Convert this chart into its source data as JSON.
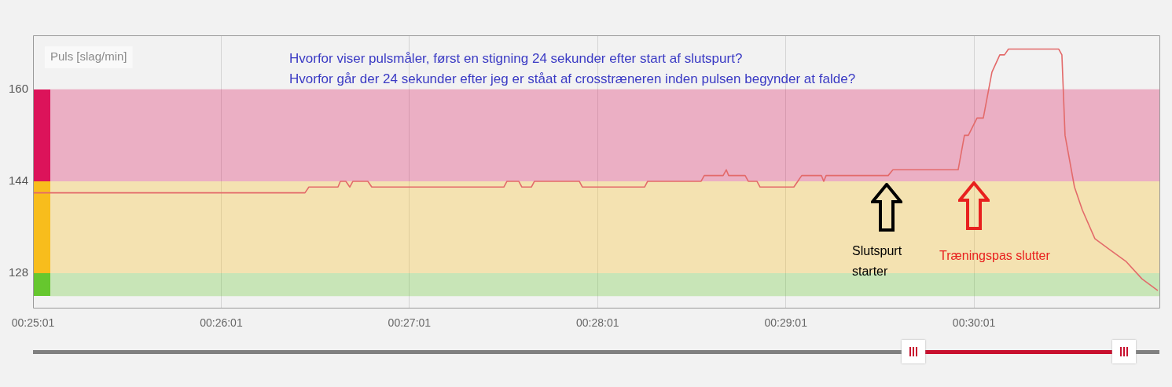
{
  "chart_data": {
    "type": "line",
    "ylabel": "Puls [slag/min]",
    "color": "#e36a6a",
    "marker": "none",
    "line_style": "solid",
    "grid": "x",
    "annotations": [
      "Hvorfor viser pulsmåler, først en stigning 24 sekunder efter start af slutspurt?",
      "Hvorfor går der 24 sekunder efter jeg er ståat af crosstræneren inden pulsen begynder at falde?",
      "Slutspurt starter",
      "Træningspas slutter"
    ],
    "bands": [
      {
        "axis": "y",
        "from": 144,
        "to": 160,
        "color": "#dc135a"
      },
      {
        "axis": "y",
        "from": 128,
        "to": 144,
        "color": "#f8bd1c"
      },
      {
        "axis": "y",
        "from": 124,
        "to": 128,
        "color": "#66c72e"
      }
    ],
    "xlim": [
      0.416944,
      0.5167
    ],
    "xticks": [
      {
        "value": 0.416944,
        "label": "00:25:01"
      },
      {
        "value": 0.433611,
        "label": "00:26:01"
      },
      {
        "value": 0.450278,
        "label": "00:27:01"
      },
      {
        "value": 0.466944,
        "label": "00:28:01"
      },
      {
        "value": 0.483611,
        "label": "00:29:01"
      },
      {
        "value": 0.500278,
        "label": "00:30:01"
      }
    ],
    "ylim": [
      122,
      169.4
    ],
    "yticks": [
      128,
      144,
      160
    ],
    "x": [
      0.416944,
      0.441029,
      0.441377,
      0.443953,
      0.444162,
      0.444649,
      0.444997,
      0.445275,
      0.446598,
      0.446946,
      0.45864,
      0.458919,
      0.459963,
      0.460241,
      0.461077,
      0.461355,
      0.465323,
      0.465601,
      0.471101,
      0.471379,
      0.476113,
      0.476391,
      0.478062,
      0.47834,
      0.478549,
      0.480011,
      0.480289,
      0.481055,
      0.481333,
      0.484118,
      0.484326,
      0.485023,
      0.486763,
      0.486972,
      0.487181,
      0.49268,
      0.493097,
      0.498875,
      0.499432,
      0.49978,
      0.500546,
      0.501102,
      0.501868,
      0.502564,
      0.502982,
      0.50333,
      0.507785,
      0.508063,
      0.508342,
      0.509177,
      0.509873,
      0.510987,
      0.512379,
      0.513772,
      0.515164,
      0.516556
    ],
    "values": [
      142,
      142,
      143,
      143,
      144,
      144,
      143,
      144,
      144,
      143,
      143,
      144,
      144,
      143,
      143,
      144,
      144,
      143,
      143,
      144,
      144,
      145,
      145,
      146,
      145,
      145,
      144,
      144,
      143,
      143,
      143,
      145,
      145,
      144,
      145,
      145,
      146,
      146,
      152,
      152,
      155,
      155,
      163,
      166,
      166,
      167,
      167,
      166,
      152,
      143,
      139,
      134,
      132,
      130,
      127,
      125
    ]
  }
}
